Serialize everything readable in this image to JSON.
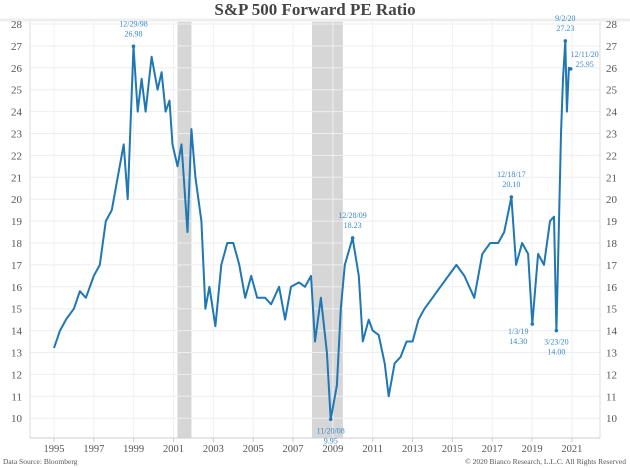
{
  "chart_data": {
    "type": "line",
    "title": "S&P 500 Forward PE Ratio",
    "footer_left": "Data Source: Bloomberg",
    "footer_right": "© 2020 Bianco Research, L.L.C. All Rights Reserved",
    "ylim": [
      9.1,
      28.1
    ],
    "xlim": [
      1993.8,
      2022.3
    ],
    "y_ticks": [
      10,
      11,
      12,
      13,
      14,
      15,
      16,
      17,
      18,
      19,
      20,
      21,
      22,
      23,
      24,
      25,
      26,
      27,
      28
    ],
    "x_ticks": [
      "1995",
      "1997",
      "1999",
      "2001",
      "2003",
      "2005",
      "2007",
      "2009",
      "2011",
      "2013",
      "2015",
      "2017",
      "2019",
      "2021"
    ],
    "grid": true,
    "line_color": "#1f77b4",
    "recession_color": "#d6d6d6",
    "recessions": [
      [
        2001.2,
        2001.9
      ],
      [
        2007.95,
        2009.5
      ]
    ],
    "series": [
      {
        "x": [
          1995.0,
          1995.3,
          1995.6,
          1996.0,
          1996.3,
          1996.6,
          1997.0,
          1997.3,
          1997.6,
          1997.9,
          1998.2,
          1998.5,
          1998.7,
          1998.99,
          1999.2,
          1999.4,
          1999.6,
          1999.9,
          2000.2,
          2000.4,
          2000.6,
          2000.8,
          2000.95,
          2001.2,
          2001.4,
          2001.7,
          2001.9,
          2002.1,
          2002.4,
          2002.6,
          2002.8,
          2003.1,
          2003.4,
          2003.7,
          2004.0,
          2004.3,
          2004.6,
          2004.9,
          2005.2,
          2005.6,
          2005.9,
          2006.3,
          2006.6,
          2006.9,
          2007.3,
          2007.6,
          2007.9,
          2008.1,
          2008.4,
          2008.7,
          2008.89,
          2009.2,
          2009.4,
          2009.6,
          2009.99,
          2010.3,
          2010.5,
          2010.8,
          2011.0,
          2011.3,
          2011.6,
          2011.8,
          2012.1,
          2012.4,
          2012.7,
          2013.0,
          2013.3,
          2013.6,
          2014.0,
          2014.4,
          2014.8,
          2015.2,
          2015.6,
          2016.1,
          2016.5,
          2016.9,
          2017.3,
          2017.6,
          2017.96,
          2018.2,
          2018.5,
          2018.8,
          2019.01,
          2019.3,
          2019.6,
          2019.9,
          2020.1,
          2020.22,
          2020.3,
          2020.45,
          2020.55,
          2020.67,
          2020.75,
          2020.85,
          2020.94
        ],
        "values": [
          13.2,
          14.0,
          14.5,
          15.0,
          15.8,
          15.5,
          16.5,
          17.0,
          19.0,
          19.5,
          21.0,
          22.5,
          20.0,
          26.98,
          24.0,
          25.5,
          24.0,
          26.5,
          25.0,
          25.8,
          24.0,
          24.5,
          22.5,
          21.5,
          22.5,
          18.5,
          23.2,
          21.0,
          19.0,
          15.0,
          16.0,
          14.2,
          17.0,
          18.0,
          18.0,
          17.0,
          15.5,
          16.5,
          15.5,
          15.5,
          15.2,
          16.0,
          14.5,
          16.0,
          16.2,
          16.0,
          16.5,
          13.5,
          15.5,
          13.0,
          9.95,
          11.5,
          15.0,
          17.0,
          18.23,
          16.5,
          13.5,
          14.5,
          14.0,
          13.8,
          12.5,
          11.0,
          12.5,
          12.8,
          13.5,
          13.5,
          14.5,
          15.0,
          15.5,
          16.0,
          16.5,
          17.0,
          16.5,
          15.5,
          17.5,
          18.0,
          18.0,
          18.5,
          20.1,
          17.0,
          18.0,
          17.5,
          14.3,
          17.5,
          17.0,
          19.0,
          19.2,
          14.0,
          17.0,
          23.0,
          25.5,
          27.23,
          24.0,
          26.0,
          25.95
        ]
      }
    ],
    "annotations": [
      {
        "date": "12/29/98",
        "value": "26.98",
        "x": 1998.99,
        "y": 26.98,
        "pos": "above"
      },
      {
        "date": "11/20/08",
        "value": "9.95",
        "x": 2008.89,
        "y": 9.95,
        "pos": "below"
      },
      {
        "date": "12/28/09",
        "value": "18.23",
        "x": 2009.99,
        "y": 18.23,
        "pos": "above"
      },
      {
        "date": "12/18/17",
        "value": "20.10",
        "x": 2017.96,
        "y": 20.1,
        "pos": "above"
      },
      {
        "date": "1/3/19",
        "value": "14.30",
        "x": 2019.01,
        "y": 14.3,
        "pos": "belowleft"
      },
      {
        "date": "3/23/20",
        "value": "14.00",
        "x": 2020.22,
        "y": 14.0,
        "pos": "below"
      },
      {
        "date": "9/2/20",
        "value": "27.23",
        "x": 2020.67,
        "y": 27.23,
        "pos": "above"
      },
      {
        "date": "12/11/20",
        "value": "25.95",
        "x": 2020.94,
        "y": 25.95,
        "pos": "right"
      }
    ]
  }
}
